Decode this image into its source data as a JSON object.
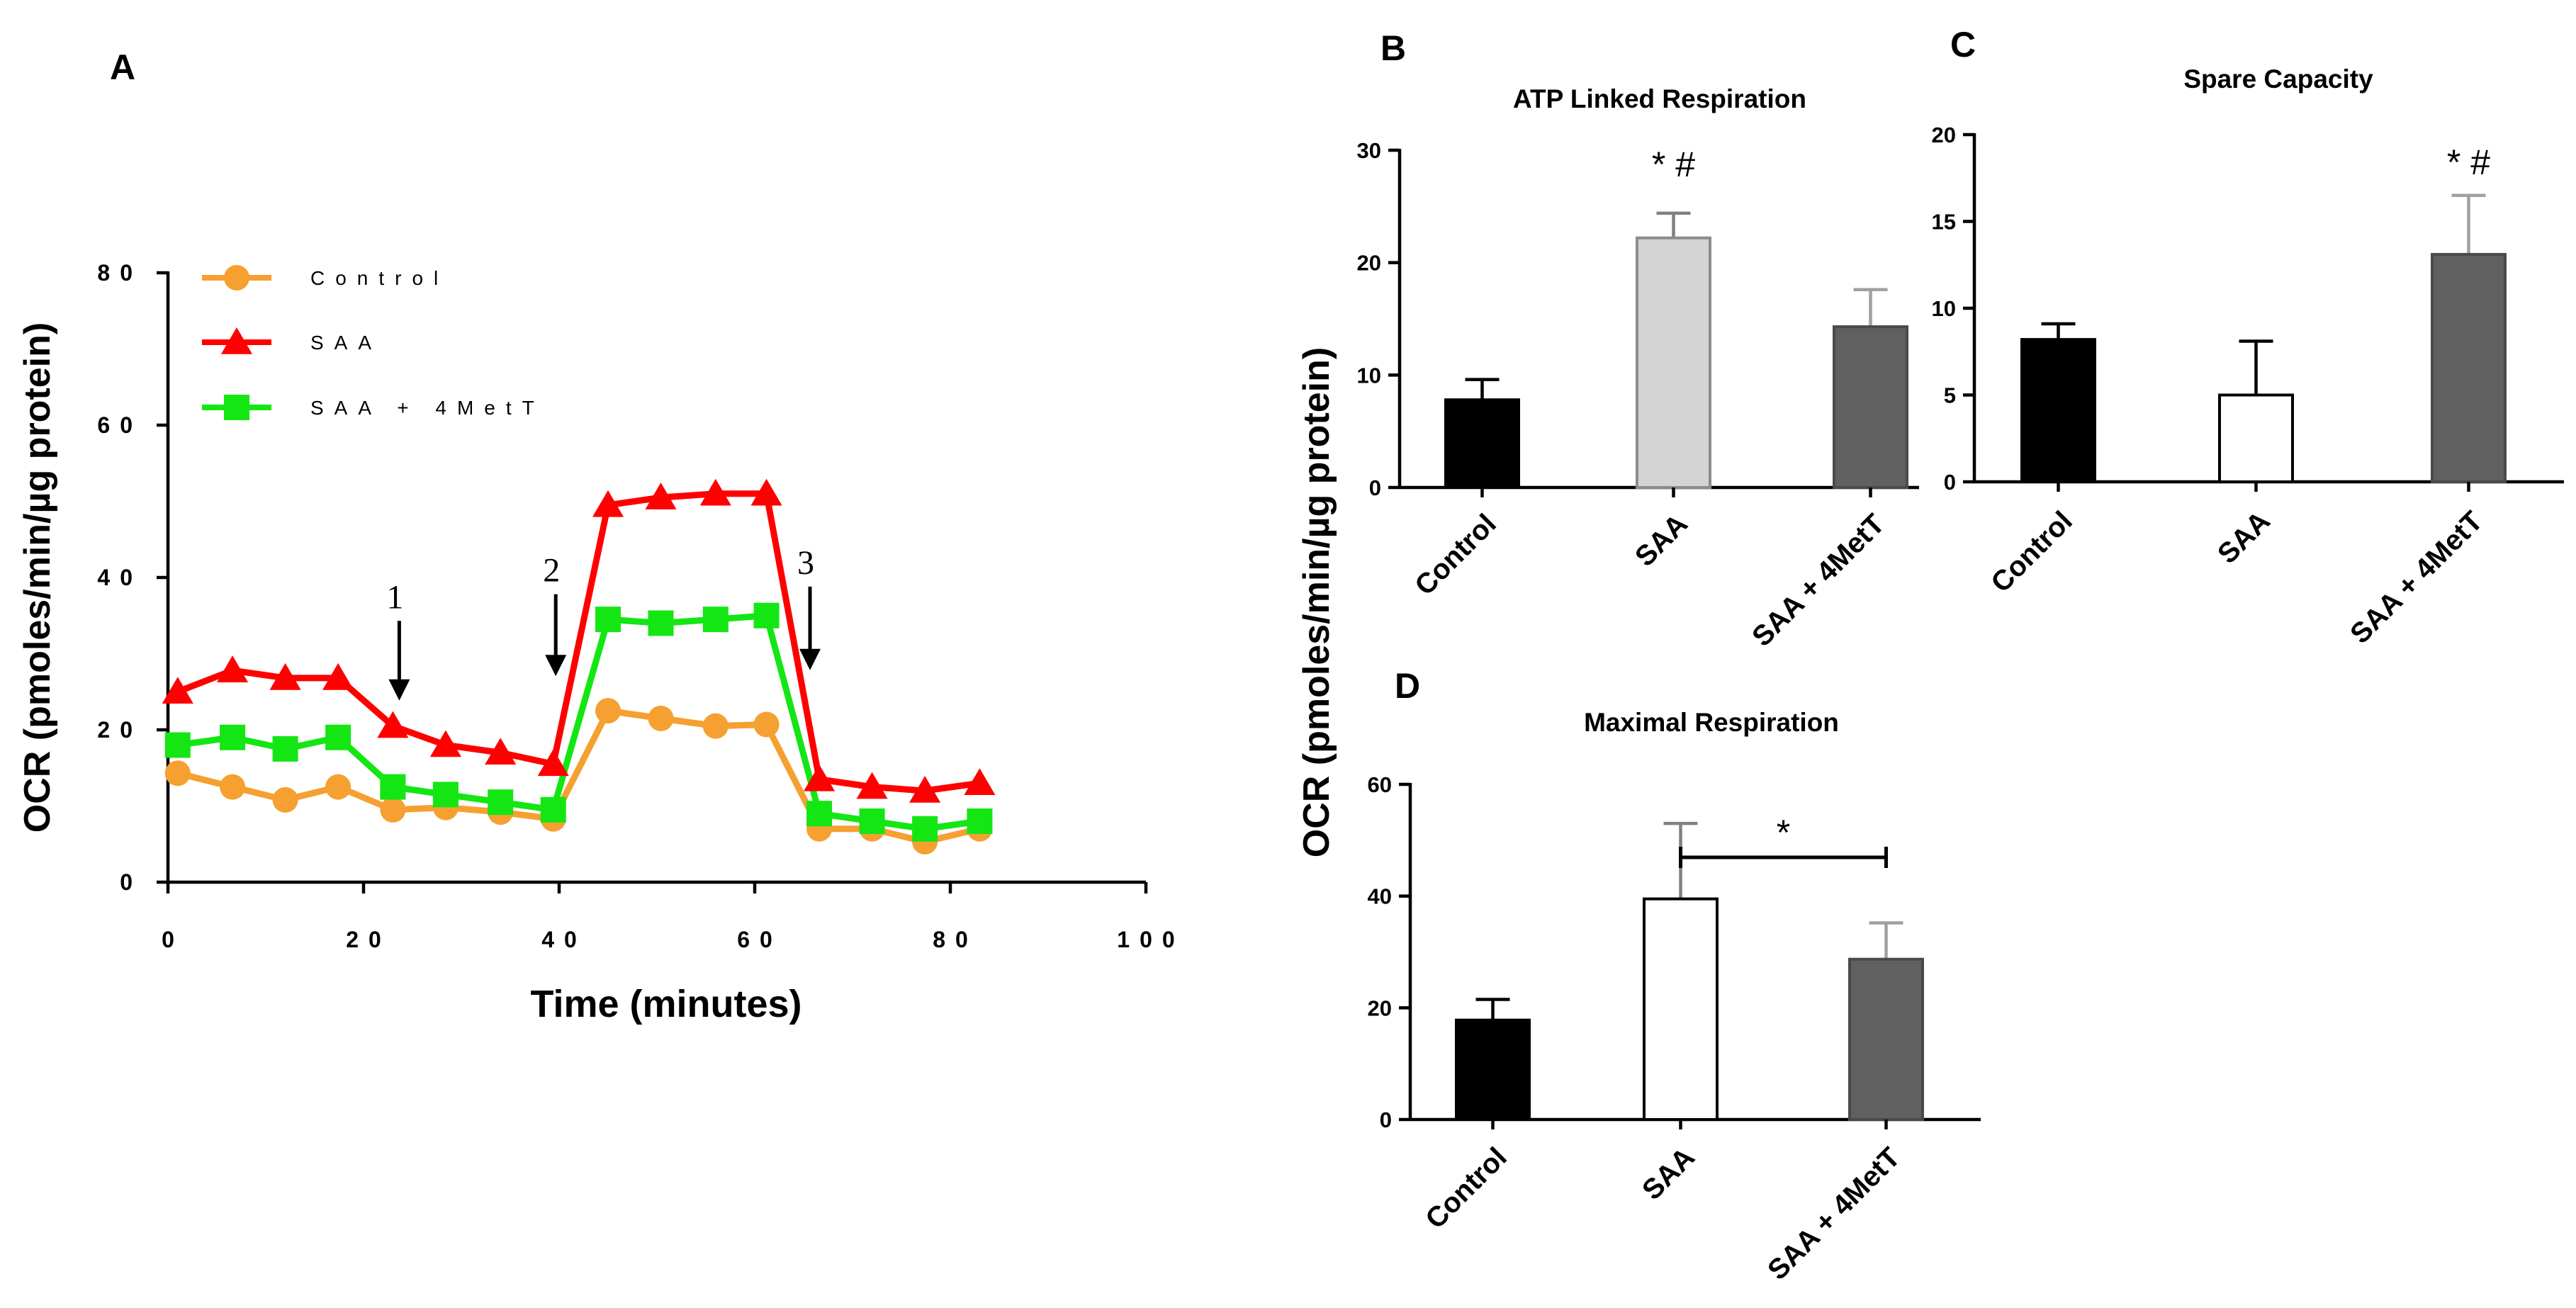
{
  "panel_letters": {
    "a": "A",
    "b": "B",
    "c": "C",
    "d": "D"
  },
  "shared_ylabel": "OCR (pmoles/min/µg protein)",
  "colors": {
    "control": "#f5a030",
    "saa": "#ff0000",
    "saa_4mett": "#14e614",
    "bar_black": "#000000",
    "bar_light": "#d4d4d4",
    "bar_white": "#ffffff",
    "bar_dark": "#606060",
    "err_gray": "#a0a0a0"
  },
  "injections": [
    {
      "label": "1",
      "x": 23
    },
    {
      "label": "2",
      "x": 39
    },
    {
      "label": "3",
      "x": 65
    }
  ],
  "chart_data": [
    {
      "id": "A",
      "type": "line",
      "title": "",
      "xlabel": "Time (minutes)",
      "ylabel": "OCR (pmoles/min/µg protein)",
      "xlim": [
        0,
        100
      ],
      "ylim": [
        0,
        80
      ],
      "xticks": [
        0,
        20,
        40,
        60,
        80,
        100
      ],
      "yticks": [
        0,
        20,
        40,
        60,
        80
      ],
      "xtick_labels": [
        "0",
        "20",
        "40",
        "60",
        "80",
        "100"
      ],
      "ytick_labels": [
        "0",
        "20",
        "40",
        "60",
        "80"
      ],
      "x": [
        1,
        6.6,
        12,
        17.4,
        23,
        28.4,
        34,
        39.4,
        45,
        50.4,
        56,
        61.2,
        66.6,
        72,
        77.4,
        83
      ],
      "series": [
        {
          "name": "Control",
          "marker": "circle",
          "color": "#f5a030",
          "values": [
            14.3,
            12.5,
            10.8,
            12.5,
            9.5,
            9.8,
            9.2,
            8.3,
            22.5,
            21.5,
            20.5,
            20.7,
            7.0,
            7.0,
            5.3,
            7.0
          ]
        },
        {
          "name": "SAA",
          "marker": "triangle",
          "color": "#ff0000",
          "values": [
            25.0,
            27.8,
            26.8,
            26.8,
            20.5,
            18.0,
            17.0,
            15.5,
            49.5,
            50.5,
            51.0,
            51.0,
            13.5,
            12.5,
            12.0,
            13.0
          ]
        },
        {
          "name": "SAA + 4MetT",
          "marker": "square",
          "color": "#14e614",
          "values": [
            18.0,
            19.0,
            17.5,
            19.0,
            12.5,
            11.5,
            10.5,
            9.5,
            34.5,
            34.0,
            34.5,
            35.0,
            9.0,
            8.0,
            7.0,
            8.0
          ]
        }
      ],
      "legend": [
        "Control",
        "SAA",
        "SAA + 4MetT"
      ],
      "legend_position": "top-left"
    },
    {
      "id": "B",
      "type": "bar",
      "title": "ATP Linked Respiration",
      "ylim": [
        0,
        30
      ],
      "yticks": [
        0,
        10,
        20,
        30
      ],
      "ytick_labels": [
        "0",
        "10",
        "20",
        "30"
      ],
      "categories": [
        "Control",
        "SAA",
        "SAA + 4MetT"
      ],
      "values": [
        7.8,
        22.2,
        14.3
      ],
      "errors": [
        1.8,
        2.2,
        3.3
      ],
      "fills": [
        "#000000",
        "#d4d4d4",
        "#606060"
      ],
      "annotations": [
        {
          "text": "* #",
          "category": "SAA"
        }
      ]
    },
    {
      "id": "C",
      "type": "bar",
      "title": "Spare Capacity",
      "ylim": [
        0,
        20
      ],
      "yticks": [
        0,
        5,
        10,
        15,
        20
      ],
      "ytick_labels": [
        "0",
        "5",
        "10",
        "15",
        "20"
      ],
      "categories": [
        "Control",
        "SAA",
        "SAA + 4MetT"
      ],
      "values": [
        8.2,
        5.0,
        13.1
      ],
      "errors": [
        0.9,
        3.1,
        3.4
      ],
      "fills": [
        "#000000",
        "#ffffff",
        "#606060"
      ],
      "annotations": [
        {
          "text": "* #",
          "category": "SAA + 4MetT"
        }
      ]
    },
    {
      "id": "D",
      "type": "bar",
      "title": "Maximal Respiration",
      "ylim": [
        0,
        60
      ],
      "yticks": [
        0,
        20,
        40,
        60
      ],
      "ytick_labels": [
        "0",
        "20",
        "40",
        "60"
      ],
      "categories": [
        "Control",
        "SAA",
        "SAA + 4MetT"
      ],
      "values": [
        17.8,
        39.5,
        28.7
      ],
      "errors": [
        3.7,
        13.5,
        6.5
      ],
      "fills": [
        "#000000",
        "#ffffff",
        "#606060"
      ],
      "annotations": [
        {
          "text": "*",
          "between": [
            "SAA",
            "SAA + 4MetT"
          ]
        }
      ]
    }
  ]
}
